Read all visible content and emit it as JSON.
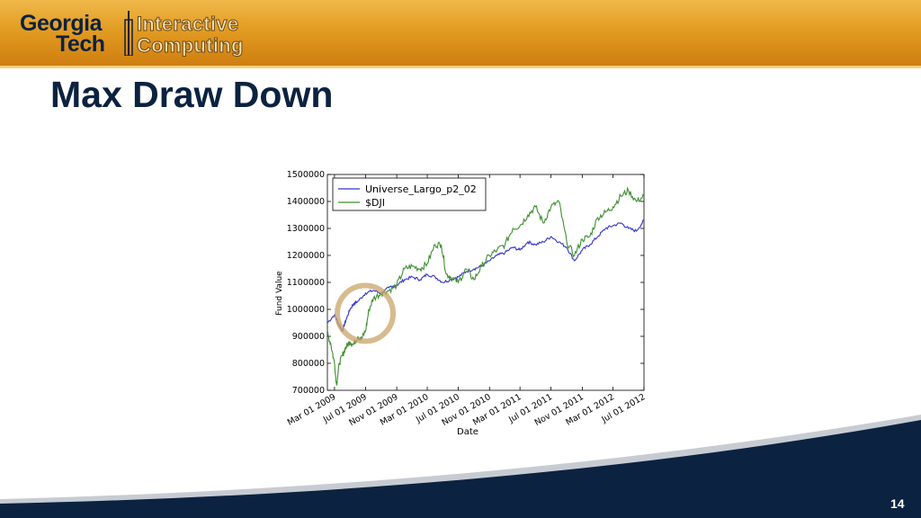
{
  "header": {
    "logo_line1": "Georgia",
    "logo_line2": "Tech",
    "logo_line3": "Interactive",
    "logo_line4": "Computing"
  },
  "slide": {
    "title": "Max Draw Down",
    "page_number": "14"
  },
  "colors": {
    "gold": "#e39c22",
    "navy": "#0b2240",
    "series_fund": "#3333cc",
    "series_dji": "#3f8f2f",
    "highlight_ring": "#c9a46a"
  },
  "chart_data": {
    "type": "line",
    "xlabel": "Date",
    "ylabel": "Fund Value",
    "ylim": [
      700000,
      1500000
    ],
    "xlim": [
      "2009-02-01",
      "2012-07-01"
    ],
    "yticks": [
      "700000",
      "800000",
      "900000",
      "1000000",
      "1100000",
      "1200000",
      "1300000",
      "1400000",
      "1500000"
    ],
    "xticks": [
      "Mar 01 2009",
      "Jul 01 2009",
      "Nov 01 2009",
      "Mar 01 2010",
      "Jul 01 2010",
      "Nov 01 2010",
      "Mar 01 2011",
      "Jul 01 2011",
      "Nov 01 2011",
      "Mar 01 2012",
      "Jul 01 2012"
    ],
    "legend_position": "top-left",
    "highlight": "circle around the early-2009 drawdown",
    "series": [
      {
        "name": "Universe_Largo_p2_02",
        "x": [
          "2009-02-01",
          "2009-03-01",
          "2009-03-15",
          "2009-04-01",
          "2009-04-15",
          "2009-05-01",
          "2009-05-15",
          "2009-06-01",
          "2009-07-01",
          "2009-08-01",
          "2009-09-01",
          "2009-10-01",
          "2009-11-01",
          "2009-12-01",
          "2010-01-01",
          "2010-02-01",
          "2010-03-01",
          "2010-04-01",
          "2010-05-01",
          "2010-06-01",
          "2010-07-01",
          "2010-08-01",
          "2010-09-01",
          "2010-10-01",
          "2010-11-01",
          "2010-12-01",
          "2011-01-01",
          "2011-02-01",
          "2011-03-01",
          "2011-04-01",
          "2011-05-01",
          "2011-06-01",
          "2011-07-01",
          "2011-08-01",
          "2011-09-01",
          "2011-10-01",
          "2011-11-01",
          "2011-12-01",
          "2012-01-01",
          "2012-02-01",
          "2012-03-01",
          "2012-04-01",
          "2012-05-01",
          "2012-06-01",
          "2012-07-01"
        ],
        "y": [
          950000,
          980000,
          950000,
          920000,
          960000,
          1000000,
          1020000,
          1030000,
          1060000,
          1070000,
          1060000,
          1080000,
          1090000,
          1110000,
          1120000,
          1110000,
          1130000,
          1120000,
          1100000,
          1110000,
          1120000,
          1140000,
          1150000,
          1160000,
          1180000,
          1200000,
          1210000,
          1230000,
          1220000,
          1250000,
          1240000,
          1250000,
          1270000,
          1250000,
          1230000,
          1180000,
          1220000,
          1240000,
          1270000,
          1300000,
          1310000,
          1320000,
          1300000,
          1290000,
          1330000
        ]
      },
      {
        "name": "$DJI",
        "x": [
          "2009-02-01",
          "2009-02-15",
          "2009-03-01",
          "2009-03-09",
          "2009-03-20",
          "2009-04-01",
          "2009-04-15",
          "2009-05-01",
          "2009-05-15",
          "2009-06-01",
          "2009-06-15",
          "2009-07-01",
          "2009-07-15",
          "2009-08-01",
          "2009-09-01",
          "2009-10-01",
          "2009-11-01",
          "2009-12-01",
          "2010-01-01",
          "2010-02-01",
          "2010-03-01",
          "2010-04-01",
          "2010-04-25",
          "2010-05-15",
          "2010-06-01",
          "2010-07-01",
          "2010-08-01",
          "2010-09-01",
          "2010-10-01",
          "2010-11-01",
          "2010-12-01",
          "2011-01-01",
          "2011-02-01",
          "2011-03-01",
          "2011-04-01",
          "2011-05-01",
          "2011-06-01",
          "2011-07-01",
          "2011-08-01",
          "2011-09-01",
          "2011-10-01",
          "2011-11-01",
          "2011-12-01",
          "2012-01-01",
          "2012-02-01",
          "2012-03-01",
          "2012-04-01",
          "2012-05-01",
          "2012-06-01",
          "2012-07-01"
        ],
        "y": [
          910000,
          870000,
          800000,
          720000,
          800000,
          830000,
          860000,
          880000,
          870000,
          900000,
          890000,
          920000,
          1000000,
          1040000,
          1060000,
          1070000,
          1090000,
          1150000,
          1160000,
          1150000,
          1170000,
          1240000,
          1240000,
          1130000,
          1120000,
          1100000,
          1150000,
          1110000,
          1160000,
          1200000,
          1220000,
          1240000,
          1300000,
          1310000,
          1350000,
          1380000,
          1320000,
          1380000,
          1400000,
          1250000,
          1200000,
          1260000,
          1270000,
          1340000,
          1360000,
          1380000,
          1420000,
          1440000,
          1400000,
          1420000
        ]
      }
    ]
  }
}
